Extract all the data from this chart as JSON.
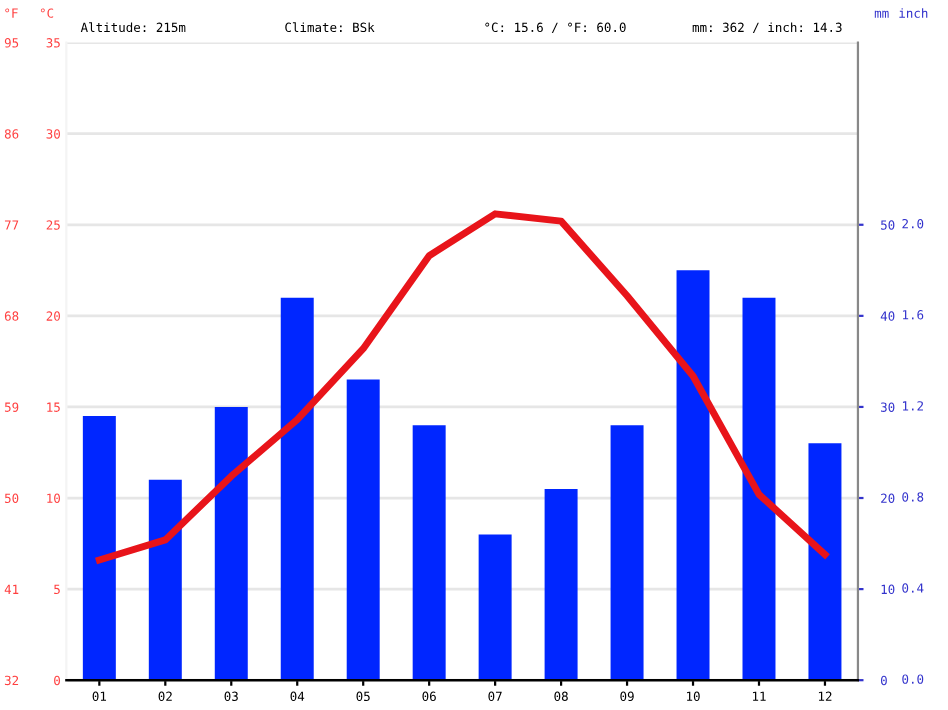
{
  "chart_data": {
    "type": "bar",
    "annotations": [
      "Altitude: 215m",
      "Climate: BSk",
      "°C: 15.6 / °F: 60.0",
      "mm: 362 / inch: 14.3",
      "inch",
      "0.0",
      "0.4",
      "0.8",
      "1.2",
      "1.6",
      "2.0"
    ],
    "categories": [
      "01",
      "02",
      "03",
      "04",
      "05",
      "06",
      "07",
      "08",
      "09",
      "10",
      "11",
      "12"
    ],
    "series": [
      {
        "axis": "y2",
        "color": "#0026ff",
        "values": [
          29,
          22,
          30,
          42,
          33,
          28,
          16,
          21,
          28,
          45,
          42,
          26
        ]
      },
      {
        "type": "line",
        "axis": "y",
        "color": "#e8141a",
        "values": [
          6.6,
          7.7,
          11.2,
          14.3,
          18.2,
          23.3,
          25.6,
          25.2,
          21.1,
          16.7,
          10.2,
          6.9
        ]
      }
    ],
    "ylabel": "°C",
    "ylim": [
      0,
      35
    ],
    "yticks": [
      0,
      5,
      10,
      15,
      20,
      25,
      30,
      35
    ],
    "y3label": "°F",
    "y3lim": [
      32,
      95
    ],
    "y3ticks": [
      32,
      41,
      50,
      59,
      68,
      77,
      86,
      95
    ],
    "y2label": "mm",
    "y2lim": [
      0,
      70
    ],
    "y2ticks": [
      0,
      10,
      20,
      30,
      40,
      50
    ],
    "grid": "y",
    "legend": false,
    "marker": "none",
    "line_style": "solid"
  }
}
